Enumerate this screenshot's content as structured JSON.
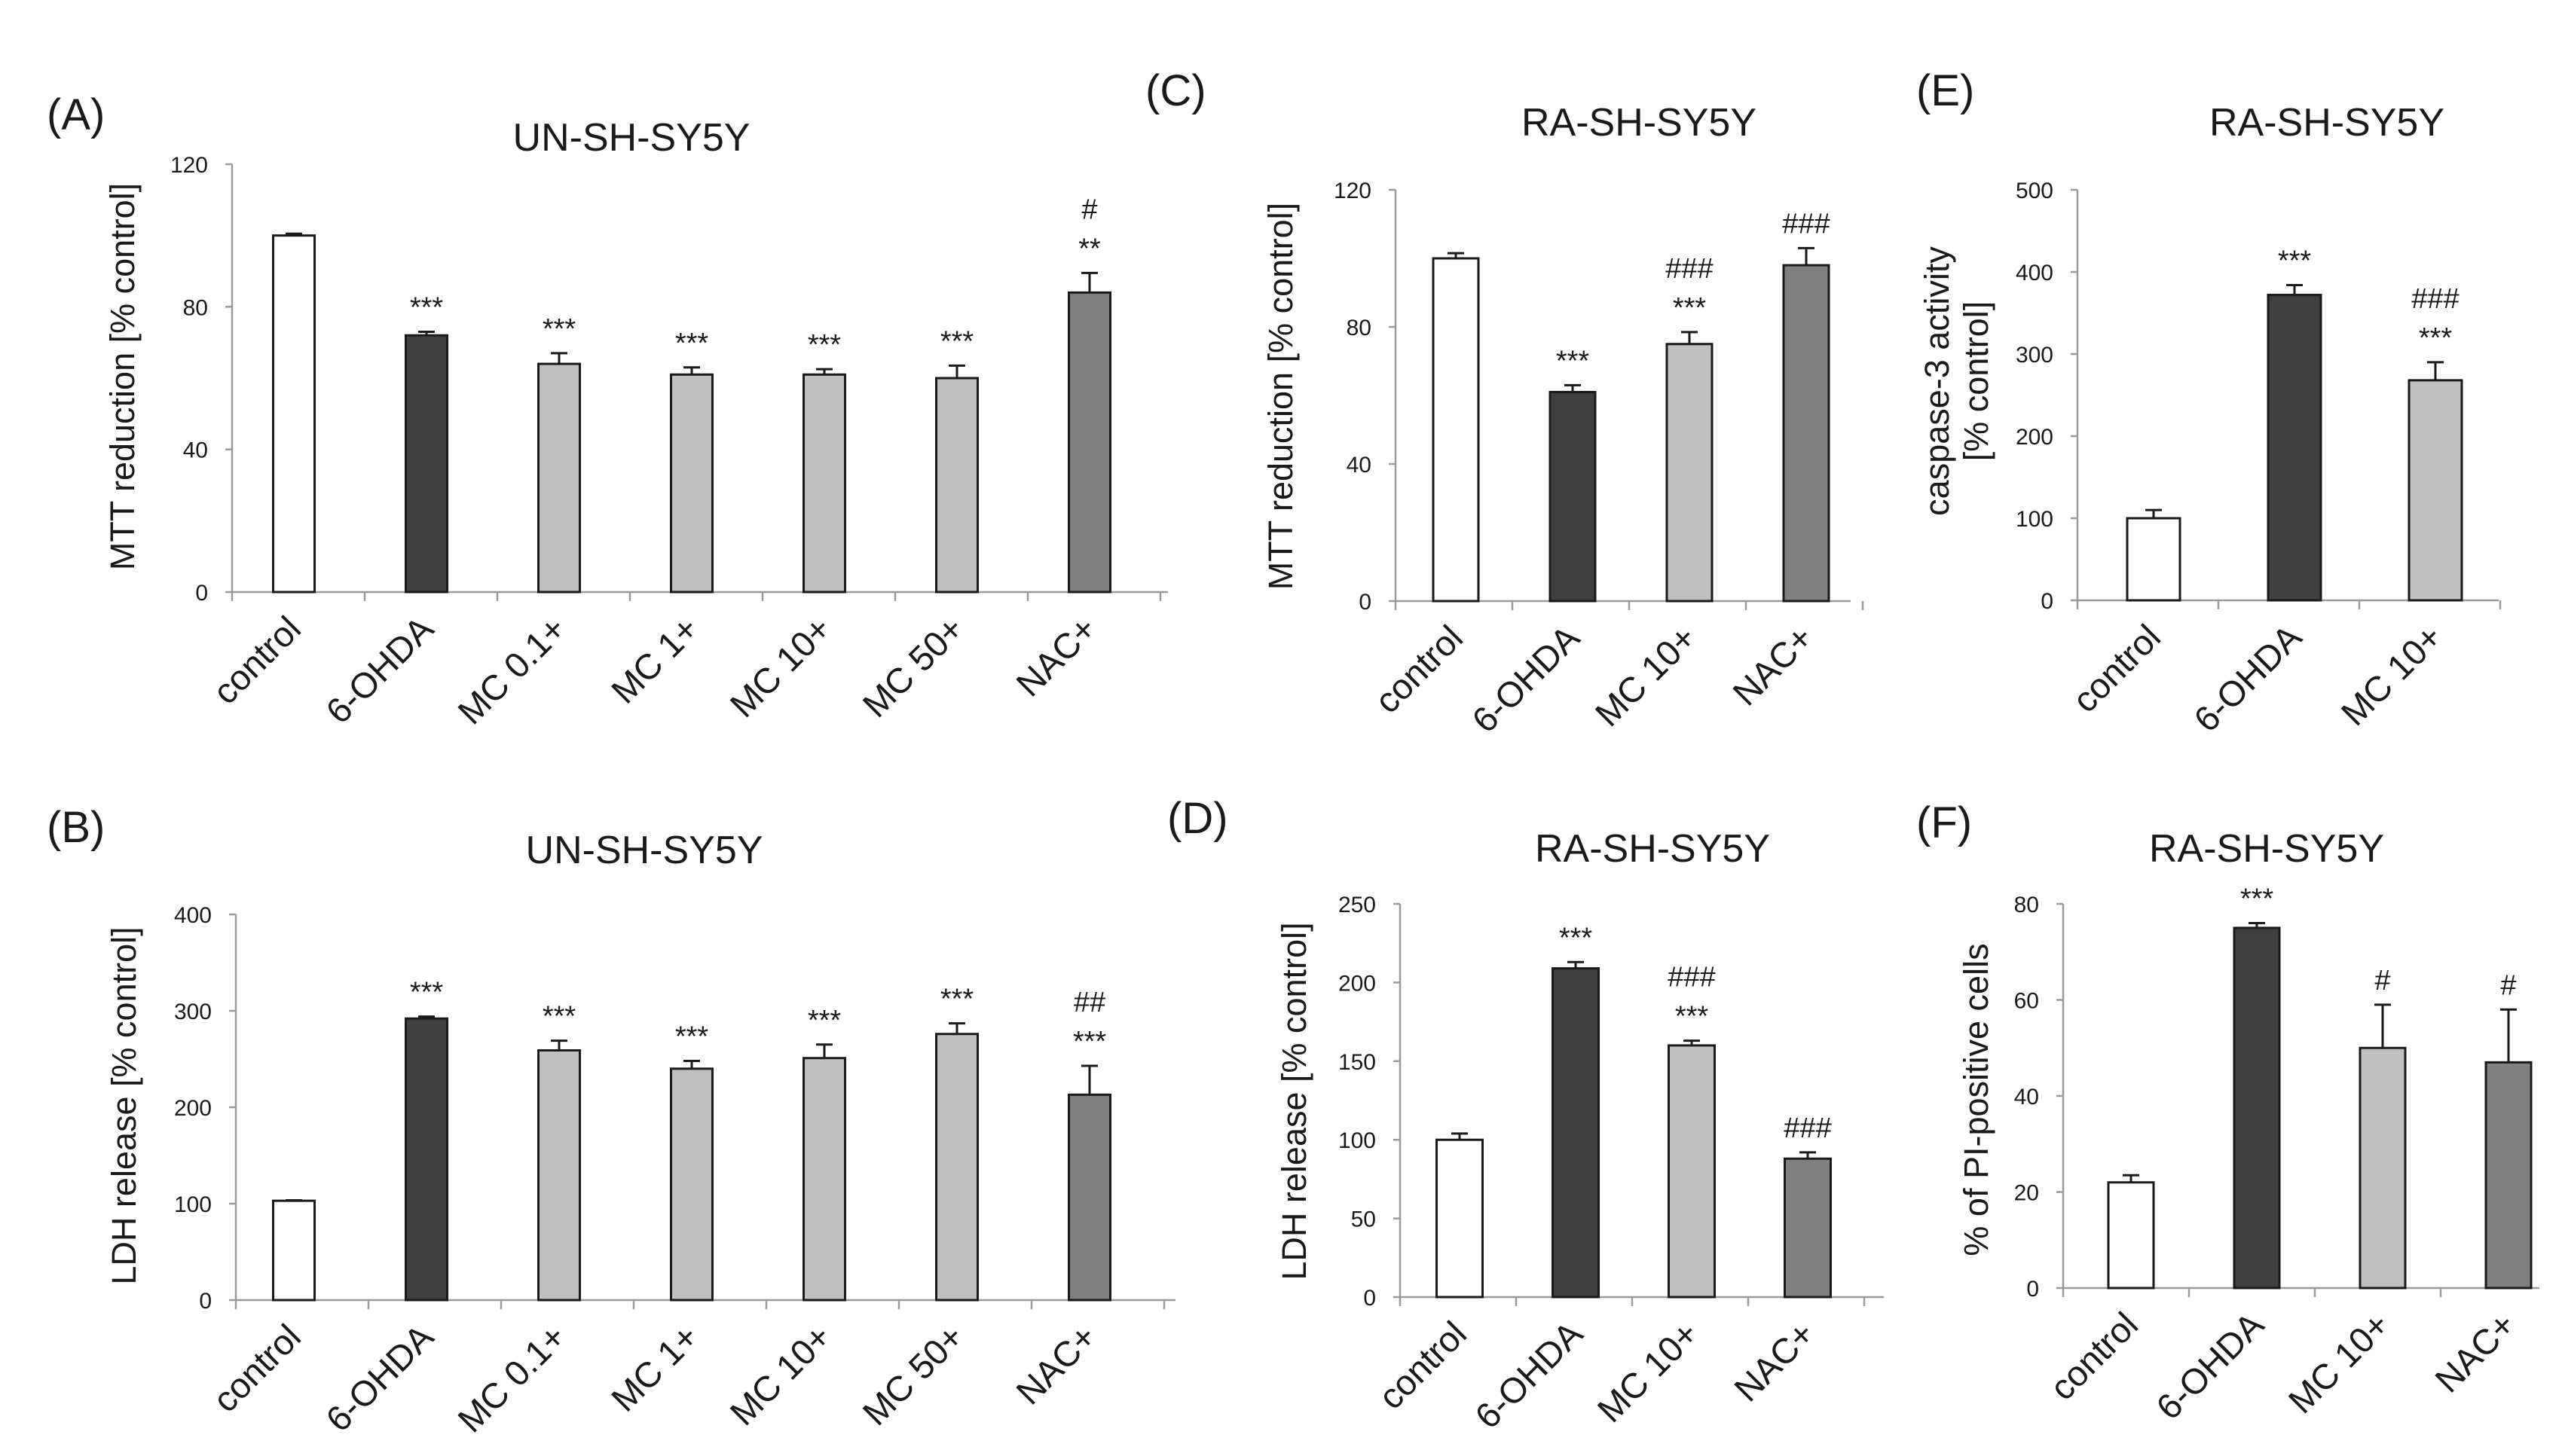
{
  "colors": {
    "white": "#ffffff",
    "dark": "#404040",
    "light": "#c0c0c0",
    "mid": "#808080"
  },
  "chart_data": [
    {
      "panel": "(A)",
      "title": "UN-SH-SY5Y",
      "type": "bar",
      "ylabel": "MTT reduction [% control]",
      "ylim": [
        0,
        120
      ],
      "yticks": [
        0,
        40,
        80,
        120
      ],
      "categories": [
        "control",
        "6-OHDA",
        "MC 0.1+",
        "MC 1+",
        "MC 10+",
        "MC 50+",
        "NAC+"
      ],
      "values": [
        100,
        72,
        64,
        61,
        61,
        60,
        84
      ],
      "errors": [
        0.5,
        1,
        3,
        2,
        1.5,
        3.5,
        5.5
      ],
      "fills": [
        "white",
        "dark",
        "light",
        "light",
        "light",
        "light",
        "mid"
      ],
      "annotations": [
        [],
        [
          "***"
        ],
        [
          "***"
        ],
        [
          "***"
        ],
        [
          "***"
        ],
        [
          "***"
        ],
        [
          "**",
          "#"
        ]
      ]
    },
    {
      "panel": "(B)",
      "title": "UN-SH-SY5Y",
      "type": "bar",
      "ylabel": "LDH release [% control]",
      "ylim": [
        0,
        400
      ],
      "yticks": [
        0,
        100,
        200,
        300,
        400
      ],
      "categories": [
        "control",
        "6-OHDA",
        "MC 0.1+",
        "MC 1+",
        "MC 10+",
        "MC 50+",
        "NAC+"
      ],
      "values": [
        103,
        292,
        259,
        240,
        251,
        276,
        213
      ],
      "errors": [
        0.5,
        2,
        10,
        8,
        14,
        11,
        30
      ],
      "fills": [
        "white",
        "dark",
        "light",
        "light",
        "light",
        "light",
        "mid"
      ],
      "annotations": [
        [],
        [
          "***"
        ],
        [
          "***"
        ],
        [
          "***"
        ],
        [
          "***"
        ],
        [
          "***"
        ],
        [
          "***",
          "##"
        ]
      ]
    },
    {
      "panel": "(C)",
      "title": "RA-SH-SY5Y",
      "type": "bar",
      "ylabel": "MTT reduction [% control]",
      "ylim": [
        0,
        120
      ],
      "yticks": [
        0,
        40,
        80,
        120
      ],
      "categories": [
        "control",
        "6-OHDA",
        "MC 10+",
        "NAC+"
      ],
      "values": [
        100,
        61,
        75,
        98
      ],
      "errors": [
        1.5,
        2,
        3.5,
        5
      ],
      "fills": [
        "white",
        "dark",
        "light",
        "mid"
      ],
      "annotations": [
        [],
        [
          "***"
        ],
        [
          "***",
          "###"
        ],
        [
          "###"
        ]
      ]
    },
    {
      "panel": "(D)",
      "title": "RA-SH-SY5Y",
      "type": "bar",
      "ylabel": "LDH release [% control]",
      "ylim": [
        0,
        250
      ],
      "yticks": [
        0,
        50,
        100,
        150,
        200,
        250
      ],
      "categories": [
        "control",
        "6-OHDA",
        "MC 10+",
        "NAC+"
      ],
      "values": [
        100,
        209,
        160,
        88
      ],
      "errors": [
        4,
        4,
        3,
        4
      ],
      "fills": [
        "white",
        "dark",
        "light",
        "mid"
      ],
      "annotations": [
        [],
        [
          "***"
        ],
        [
          "***",
          "###"
        ],
        [
          "###"
        ]
      ]
    },
    {
      "panel": "(E)",
      "title": "RA-SH-SY5Y",
      "type": "bar",
      "ylabel": [
        "caspase-3 activity",
        "[% control]"
      ],
      "ylim": [
        0,
        500
      ],
      "yticks": [
        0,
        100,
        200,
        300,
        400,
        500
      ],
      "categories": [
        "control",
        "6-OHDA",
        "MC 10+"
      ],
      "values": [
        100,
        372,
        268
      ],
      "errors": [
        10,
        12,
        22
      ],
      "fills": [
        "white",
        "dark",
        "light"
      ],
      "annotations": [
        [],
        [
          "***"
        ],
        [
          "***",
          "###"
        ]
      ]
    },
    {
      "panel": "(F)",
      "title": "RA-SH-SY5Y",
      "type": "bar",
      "ylabel": "% of PI-positive cells",
      "ylim": [
        0,
        80
      ],
      "yticks": [
        0,
        20,
        40,
        60,
        80
      ],
      "categories": [
        "control",
        "6-OHDA",
        "MC 10+",
        "NAC+"
      ],
      "values": [
        22,
        75,
        50,
        47
      ],
      "errors": [
        1.5,
        1,
        9,
        11
      ],
      "fills": [
        "white",
        "dark",
        "light",
        "mid"
      ],
      "annotations": [
        [],
        [
          "***"
        ],
        [
          "#"
        ],
        [
          "#"
        ]
      ]
    }
  ]
}
